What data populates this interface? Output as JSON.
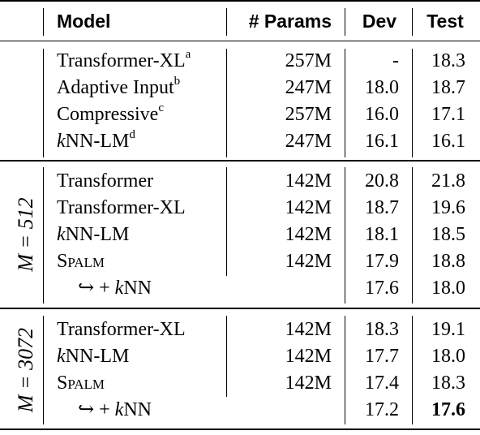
{
  "header": {
    "model": "Model",
    "params": "# Params",
    "dev": "Dev",
    "test": "Test"
  },
  "group0": {
    "rows": [
      {
        "model": "Transformer-XL",
        "sup": "a",
        "params": "257M",
        "dev": "-",
        "test": "18.3"
      },
      {
        "model": "Adaptive Input",
        "sup": "b",
        "params": "247M",
        "dev": "18.0",
        "test": "18.7"
      },
      {
        "model": "Compressive",
        "sup": "c",
        "params": "257M",
        "dev": "16.0",
        "test": "17.1"
      },
      {
        "model_prefix": "k",
        "model": "NN-LM",
        "sup": "d",
        "params": "247M",
        "dev": "16.1",
        "test": "16.1"
      }
    ]
  },
  "group1": {
    "label": "M = 512",
    "rows": [
      {
        "model": "Transformer",
        "params": "142M",
        "dev": "20.8",
        "test": "21.8"
      },
      {
        "model": "Transformer-XL",
        "params": "142M",
        "dev": "18.7",
        "test": "19.6"
      },
      {
        "model_prefix": "k",
        "model": "NN-LM",
        "params": "142M",
        "dev": "18.1",
        "test": "18.5"
      },
      {
        "model": "Spalm",
        "params": "142M",
        "dev": "17.9",
        "test": "18.8"
      },
      {
        "arrow": "↪",
        "plus": "+",
        "model_prefix": "k",
        "model": "NN",
        "params": "",
        "dev": "17.6",
        "test": "18.0"
      }
    ]
  },
  "group2": {
    "label": "M = 3072",
    "rows": [
      {
        "model": "Transformer-XL",
        "params": "142M",
        "dev": "18.3",
        "test": "19.1"
      },
      {
        "model_prefix": "k",
        "model": "NN-LM",
        "params": "142M",
        "dev": "17.7",
        "test": "18.0"
      },
      {
        "model": "Spalm",
        "params": "142M",
        "dev": "17.4",
        "test": "18.3"
      },
      {
        "arrow": "↪",
        "plus": "+",
        "model_prefix": "k",
        "model": "NN",
        "params": "",
        "dev": "17.2",
        "test": "17.6"
      }
    ]
  }
}
